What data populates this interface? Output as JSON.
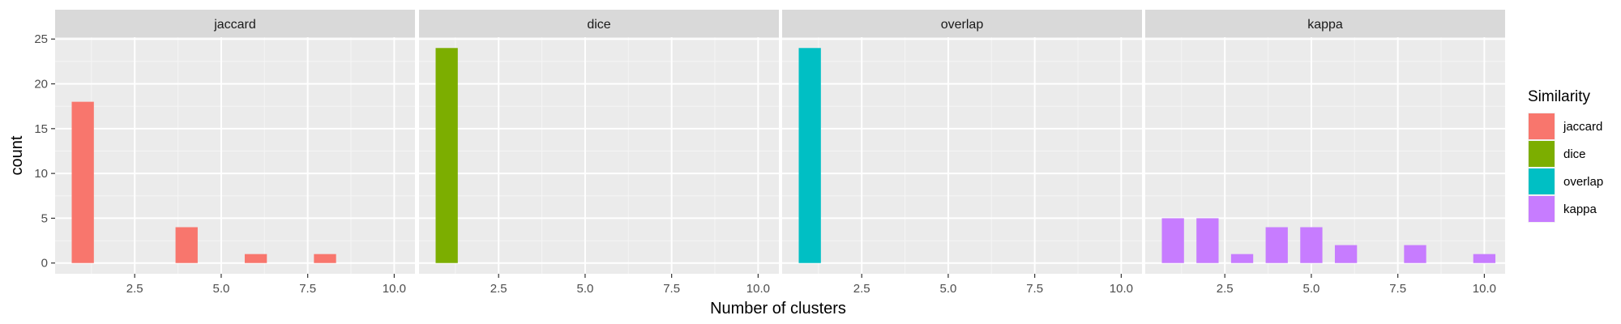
{
  "chart_data": {
    "type": "bar",
    "xlabel": "Number of clusters",
    "ylabel": "count",
    "xlim": [
      0.2,
      10.6
    ],
    "ylim": [
      -1.2,
      25.2
    ],
    "x_ticks": [
      2.5,
      5.0,
      7.5,
      10.0
    ],
    "x_tick_labels": [
      "2.5",
      "5.0",
      "7.5",
      "10.0"
    ],
    "y_ticks": [
      0,
      5,
      10,
      15,
      20,
      25
    ],
    "y_tick_labels": [
      "0",
      "5",
      "10",
      "15",
      "20",
      "25"
    ],
    "grid": true,
    "legend": {
      "title": "Similarity",
      "position": "right",
      "entries": [
        "jaccard",
        "dice",
        "overlap",
        "kappa"
      ]
    },
    "panels": [
      {
        "label": "jaccard",
        "color": "#F8766D",
        "bars": [
          {
            "x": 1,
            "y": 18
          },
          {
            "x": 4,
            "y": 4
          },
          {
            "x": 6,
            "y": 1
          },
          {
            "x": 8,
            "y": 1
          }
        ]
      },
      {
        "label": "dice",
        "color": "#7CAE00",
        "bars": [
          {
            "x": 1,
            "y": 24
          }
        ]
      },
      {
        "label": "overlap",
        "color": "#00BFC4",
        "bars": [
          {
            "x": 1,
            "y": 24
          }
        ]
      },
      {
        "label": "kappa",
        "color": "#C77CFF",
        "bars": [
          {
            "x": 1,
            "y": 5
          },
          {
            "x": 2,
            "y": 5
          },
          {
            "x": 3,
            "y": 1
          },
          {
            "x": 4,
            "y": 4
          },
          {
            "x": 5,
            "y": 4
          },
          {
            "x": 6,
            "y": 2
          },
          {
            "x": 8,
            "y": 2
          },
          {
            "x": 10,
            "y": 1
          }
        ]
      }
    ]
  }
}
